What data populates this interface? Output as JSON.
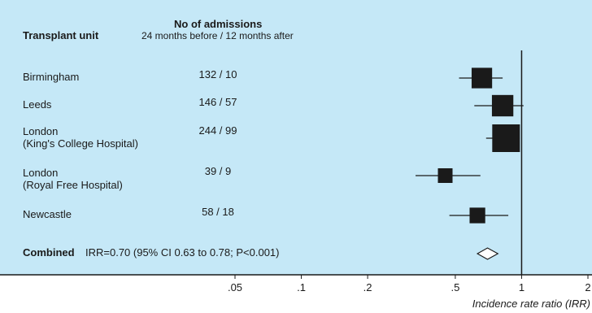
{
  "colors": {
    "panel_bg": "#c5e8f7",
    "ink": "#1a1a1a"
  },
  "header": {
    "unit_label": "Transplant unit",
    "admissions_title": "No of admissions",
    "admissions_sub": "24 months before / 12 months after"
  },
  "rows": [
    {
      "name_line1": "Birmingham",
      "name_line2": "",
      "admissions": "132 / 10"
    },
    {
      "name_line1": "Leeds",
      "name_line2": "",
      "admissions": "146 / 57"
    },
    {
      "name_line1": "London",
      "name_line2": "(King's College Hospital)",
      "admissions": "244 / 99"
    },
    {
      "name_line1": "London",
      "name_line2": "(Royal Free Hospital)",
      "admissions": "39 / 9"
    },
    {
      "name_line1": "Newcastle",
      "name_line2": "",
      "admissions": "58 / 18"
    }
  ],
  "combined": {
    "label": "Combined",
    "text": "IRR=0.70 (95% CI 0.63 to 0.78; P<0.001)"
  },
  "chart_data": {
    "type": "forest",
    "xlabel": "Incidence rate ratio (IRR)",
    "x_scale": "log",
    "xlim": [
      0.05,
      2
    ],
    "x_ticks": [
      0.05,
      0.1,
      0.2,
      0.5,
      1,
      2
    ],
    "x_tick_labels": [
      ".05",
      ".1",
      ".2",
      ".5",
      "1",
      "2"
    ],
    "reference_line": 1,
    "studies": [
      {
        "name": "Birmingham",
        "irr": 0.66,
        "ci_low": 0.52,
        "ci_high": 0.82,
        "weight": 0.55
      },
      {
        "name": "Leeds",
        "irr": 0.82,
        "ci_low": 0.61,
        "ci_high": 1.02,
        "weight": 0.6
      },
      {
        "name": "London (King's College Hospital)",
        "irr": 0.85,
        "ci_low": 0.69,
        "ci_high": 0.98,
        "weight": 1.0
      },
      {
        "name": "London (Royal Free Hospital)",
        "irr": 0.45,
        "ci_low": 0.33,
        "ci_high": 0.65,
        "weight": 0.28
      },
      {
        "name": "Newcastle",
        "irr": 0.63,
        "ci_low": 0.47,
        "ci_high": 0.87,
        "weight": 0.32
      }
    ],
    "combined": {
      "irr": 0.7,
      "ci_low": 0.63,
      "ci_high": 0.78
    }
  }
}
